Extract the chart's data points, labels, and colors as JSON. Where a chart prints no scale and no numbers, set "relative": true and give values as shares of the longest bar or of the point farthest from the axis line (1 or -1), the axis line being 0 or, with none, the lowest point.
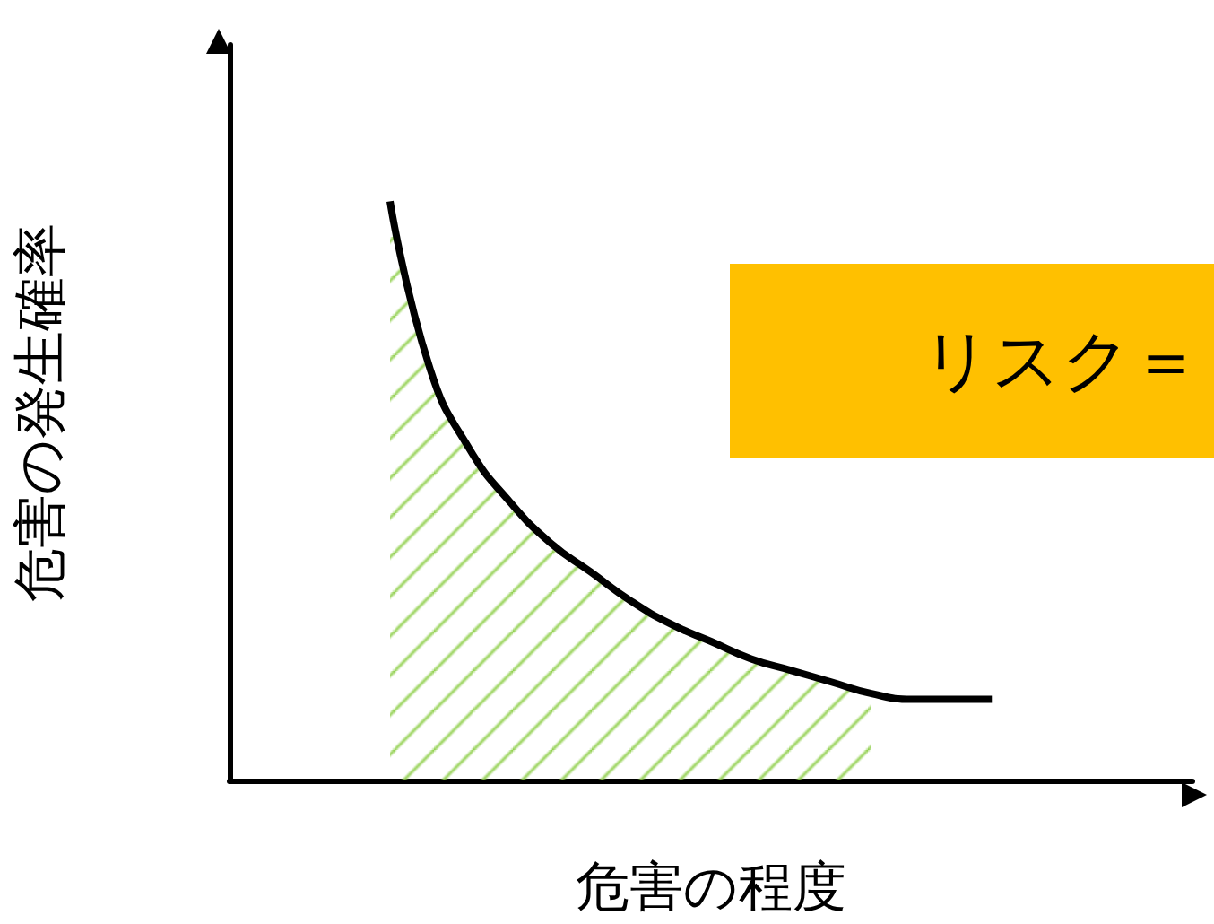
{
  "chart_data": {
    "type": "line",
    "relative": true,
    "xlabel": "危害の程度",
    "ylabel": "危害の発生確率",
    "categories": [
      null,
      null,
      null,
      null,
      null,
      null,
      null,
      null,
      null,
      null,
      null,
      null,
      null,
      null,
      null,
      null,
      null,
      null,
      null,
      null,
      null,
      null,
      null,
      null,
      null
    ],
    "series": [
      {
        "type": "area",
        "color": "#92d050",
        "values": [
          null,
          null,
          null,
          null,
          1.0,
          0.71,
          0.57,
          0.48,
          0.41,
          0.36,
          0.31,
          0.27,
          0.24,
          0.21,
          0.19,
          0.17,
          0.15,
          null,
          null,
          null,
          null,
          null,
          null,
          null,
          null
        ]
      },
      {
        "color": "#000000",
        "values": [
          null,
          null,
          null,
          null,
          1.0,
          0.71,
          0.57,
          0.48,
          0.41,
          0.36,
          0.31,
          0.27,
          0.24,
          0.21,
          0.19,
          0.17,
          0.15,
          0.14,
          0.14,
          0.14,
          null,
          null,
          null,
          null,
          null
        ]
      }
    ],
    "annotations": [
      "リスク＝"
    ],
    "grid": false,
    "marker": "none",
    "line_style": "solid",
    "tick_labels": false
  }
}
